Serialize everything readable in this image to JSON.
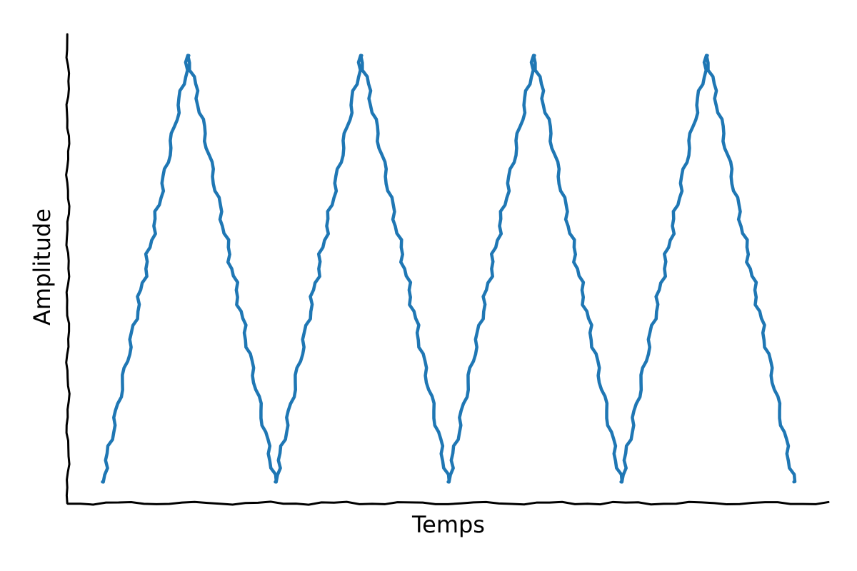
{
  "chart_data": {
    "type": "line",
    "style": "hand-drawn (xkcd)",
    "xlabel": "Temps",
    "ylabel": "Amplitude",
    "x_ticks_visible": false,
    "y_ticks_visible": false,
    "grid": false,
    "legend": "none",
    "xlim": [
      -0.2,
      4.2
    ],
    "ylim": [
      -0.05,
      1.05
    ],
    "series": [
      {
        "color": "#1f77b4",
        "points": [
          {
            "x": 0.0,
            "y": 0.0
          },
          {
            "x": 0.5,
            "y": 1.0
          },
          {
            "x": 1.0,
            "y": 0.0
          },
          {
            "x": 1.5,
            "y": 1.0
          },
          {
            "x": 2.0,
            "y": 0.0
          },
          {
            "x": 2.5,
            "y": 1.0
          },
          {
            "x": 3.0,
            "y": 0.0
          },
          {
            "x": 3.5,
            "y": 1.0
          },
          {
            "x": 4.0,
            "y": 0.0
          }
        ]
      }
    ]
  }
}
